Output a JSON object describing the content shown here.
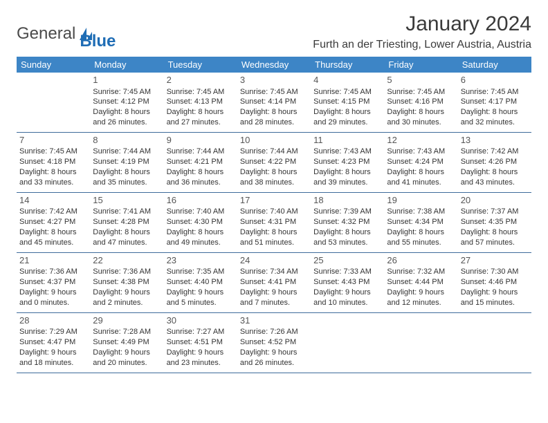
{
  "logo": {
    "text1": "General",
    "text2": "Blue"
  },
  "title": "January 2024",
  "location": "Furth an der Triesting, Lower Austria, Austria",
  "colors": {
    "header_bg": "#3d85c6",
    "header_text": "#ffffff",
    "cell_border": "#3d6a9a",
    "brand_blue": "#1f6db5",
    "text": "#333333"
  },
  "weekdays": [
    "Sunday",
    "Monday",
    "Tuesday",
    "Wednesday",
    "Thursday",
    "Friday",
    "Saturday"
  ],
  "weeks": [
    [
      null,
      {
        "n": "1",
        "sr": "Sunrise: 7:45 AM",
        "ss": "Sunset: 4:12 PM",
        "d1": "Daylight: 8 hours",
        "d2": "and 26 minutes."
      },
      {
        "n": "2",
        "sr": "Sunrise: 7:45 AM",
        "ss": "Sunset: 4:13 PM",
        "d1": "Daylight: 8 hours",
        "d2": "and 27 minutes."
      },
      {
        "n": "3",
        "sr": "Sunrise: 7:45 AM",
        "ss": "Sunset: 4:14 PM",
        "d1": "Daylight: 8 hours",
        "d2": "and 28 minutes."
      },
      {
        "n": "4",
        "sr": "Sunrise: 7:45 AM",
        "ss": "Sunset: 4:15 PM",
        "d1": "Daylight: 8 hours",
        "d2": "and 29 minutes."
      },
      {
        "n": "5",
        "sr": "Sunrise: 7:45 AM",
        "ss": "Sunset: 4:16 PM",
        "d1": "Daylight: 8 hours",
        "d2": "and 30 minutes."
      },
      {
        "n": "6",
        "sr": "Sunrise: 7:45 AM",
        "ss": "Sunset: 4:17 PM",
        "d1": "Daylight: 8 hours",
        "d2": "and 32 minutes."
      }
    ],
    [
      {
        "n": "7",
        "sr": "Sunrise: 7:45 AM",
        "ss": "Sunset: 4:18 PM",
        "d1": "Daylight: 8 hours",
        "d2": "and 33 minutes."
      },
      {
        "n": "8",
        "sr": "Sunrise: 7:44 AM",
        "ss": "Sunset: 4:19 PM",
        "d1": "Daylight: 8 hours",
        "d2": "and 35 minutes."
      },
      {
        "n": "9",
        "sr": "Sunrise: 7:44 AM",
        "ss": "Sunset: 4:21 PM",
        "d1": "Daylight: 8 hours",
        "d2": "and 36 minutes."
      },
      {
        "n": "10",
        "sr": "Sunrise: 7:44 AM",
        "ss": "Sunset: 4:22 PM",
        "d1": "Daylight: 8 hours",
        "d2": "and 38 minutes."
      },
      {
        "n": "11",
        "sr": "Sunrise: 7:43 AM",
        "ss": "Sunset: 4:23 PM",
        "d1": "Daylight: 8 hours",
        "d2": "and 39 minutes."
      },
      {
        "n": "12",
        "sr": "Sunrise: 7:43 AM",
        "ss": "Sunset: 4:24 PM",
        "d1": "Daylight: 8 hours",
        "d2": "and 41 minutes."
      },
      {
        "n": "13",
        "sr": "Sunrise: 7:42 AM",
        "ss": "Sunset: 4:26 PM",
        "d1": "Daylight: 8 hours",
        "d2": "and 43 minutes."
      }
    ],
    [
      {
        "n": "14",
        "sr": "Sunrise: 7:42 AM",
        "ss": "Sunset: 4:27 PM",
        "d1": "Daylight: 8 hours",
        "d2": "and 45 minutes."
      },
      {
        "n": "15",
        "sr": "Sunrise: 7:41 AM",
        "ss": "Sunset: 4:28 PM",
        "d1": "Daylight: 8 hours",
        "d2": "and 47 minutes."
      },
      {
        "n": "16",
        "sr": "Sunrise: 7:40 AM",
        "ss": "Sunset: 4:30 PM",
        "d1": "Daylight: 8 hours",
        "d2": "and 49 minutes."
      },
      {
        "n": "17",
        "sr": "Sunrise: 7:40 AM",
        "ss": "Sunset: 4:31 PM",
        "d1": "Daylight: 8 hours",
        "d2": "and 51 minutes."
      },
      {
        "n": "18",
        "sr": "Sunrise: 7:39 AM",
        "ss": "Sunset: 4:32 PM",
        "d1": "Daylight: 8 hours",
        "d2": "and 53 minutes."
      },
      {
        "n": "19",
        "sr": "Sunrise: 7:38 AM",
        "ss": "Sunset: 4:34 PM",
        "d1": "Daylight: 8 hours",
        "d2": "and 55 minutes."
      },
      {
        "n": "20",
        "sr": "Sunrise: 7:37 AM",
        "ss": "Sunset: 4:35 PM",
        "d1": "Daylight: 8 hours",
        "d2": "and 57 minutes."
      }
    ],
    [
      {
        "n": "21",
        "sr": "Sunrise: 7:36 AM",
        "ss": "Sunset: 4:37 PM",
        "d1": "Daylight: 9 hours",
        "d2": "and 0 minutes."
      },
      {
        "n": "22",
        "sr": "Sunrise: 7:36 AM",
        "ss": "Sunset: 4:38 PM",
        "d1": "Daylight: 9 hours",
        "d2": "and 2 minutes."
      },
      {
        "n": "23",
        "sr": "Sunrise: 7:35 AM",
        "ss": "Sunset: 4:40 PM",
        "d1": "Daylight: 9 hours",
        "d2": "and 5 minutes."
      },
      {
        "n": "24",
        "sr": "Sunrise: 7:34 AM",
        "ss": "Sunset: 4:41 PM",
        "d1": "Daylight: 9 hours",
        "d2": "and 7 minutes."
      },
      {
        "n": "25",
        "sr": "Sunrise: 7:33 AM",
        "ss": "Sunset: 4:43 PM",
        "d1": "Daylight: 9 hours",
        "d2": "and 10 minutes."
      },
      {
        "n": "26",
        "sr": "Sunrise: 7:32 AM",
        "ss": "Sunset: 4:44 PM",
        "d1": "Daylight: 9 hours",
        "d2": "and 12 minutes."
      },
      {
        "n": "27",
        "sr": "Sunrise: 7:30 AM",
        "ss": "Sunset: 4:46 PM",
        "d1": "Daylight: 9 hours",
        "d2": "and 15 minutes."
      }
    ],
    [
      {
        "n": "28",
        "sr": "Sunrise: 7:29 AM",
        "ss": "Sunset: 4:47 PM",
        "d1": "Daylight: 9 hours",
        "d2": "and 18 minutes."
      },
      {
        "n": "29",
        "sr": "Sunrise: 7:28 AM",
        "ss": "Sunset: 4:49 PM",
        "d1": "Daylight: 9 hours",
        "d2": "and 20 minutes."
      },
      {
        "n": "30",
        "sr": "Sunrise: 7:27 AM",
        "ss": "Sunset: 4:51 PM",
        "d1": "Daylight: 9 hours",
        "d2": "and 23 minutes."
      },
      {
        "n": "31",
        "sr": "Sunrise: 7:26 AM",
        "ss": "Sunset: 4:52 PM",
        "d1": "Daylight: 9 hours",
        "d2": "and 26 minutes."
      },
      null,
      null,
      null
    ]
  ]
}
